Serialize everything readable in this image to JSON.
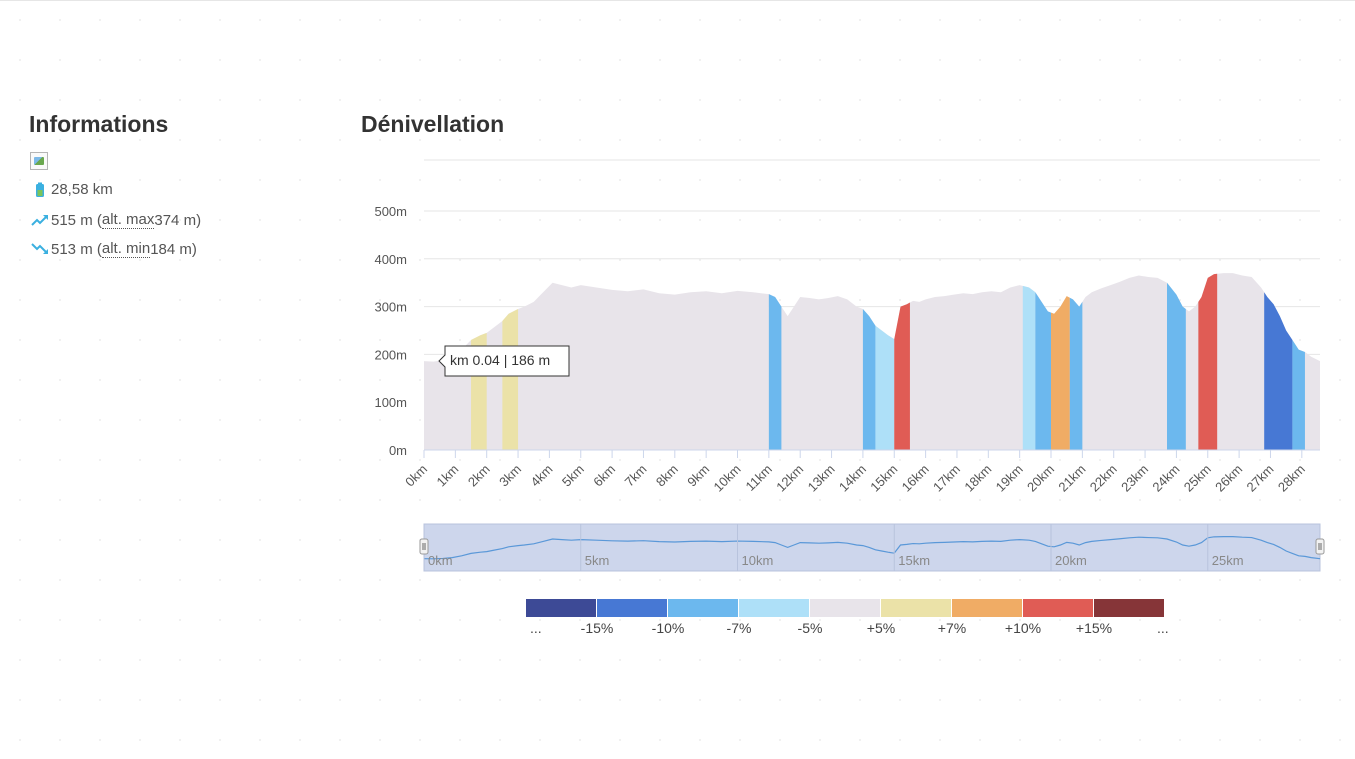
{
  "info": {
    "title": "Informations",
    "distance": "28,58 km",
    "ascent_value": "515 m (",
    "ascent_abbr": "alt. max",
    "ascent_alt": " 374 m)",
    "descent_value": "513 m (",
    "descent_abbr": "alt. min",
    "descent_alt": " 184 m)"
  },
  "tooltip": {
    "text": "km 0.04 | 186 m"
  },
  "chart_data": {
    "type": "area",
    "title": "Dénivellation",
    "xlim": [
      0,
      28.58
    ],
    "ylim": [
      0,
      600
    ],
    "y_ticks": [
      0,
      100,
      200,
      300,
      400,
      500
    ],
    "y_tick_labels": [
      "0m",
      "100m",
      "200m",
      "300m",
      "400m",
      "500m"
    ],
    "x_ticks": [
      0,
      1,
      2,
      3,
      4,
      5,
      6,
      7,
      8,
      9,
      10,
      11,
      12,
      13,
      14,
      15,
      16,
      17,
      18,
      19,
      20,
      21,
      22,
      23,
      24,
      25,
      26,
      27,
      28
    ],
    "x_tick_labels": [
      "0km",
      "1km",
      "2km",
      "3km",
      "4km",
      "5km",
      "6km",
      "7km",
      "8km",
      "9km",
      "10km",
      "11km",
      "12km",
      "13km",
      "14km",
      "15km",
      "16km",
      "17km",
      "18km",
      "19km",
      "20km",
      "21km",
      "22km",
      "23km",
      "24km",
      "25km",
      "26km",
      "27km",
      "28km"
    ],
    "elevation": {
      "x": [
        0,
        0.3,
        0.6,
        0.9,
        1.2,
        1.5,
        1.8,
        2.0,
        2.2,
        2.5,
        2.7,
        3.0,
        3.2,
        3.5,
        3.8,
        4.1,
        4.4,
        4.7,
        5.0,
        5.5,
        6.0,
        6.5,
        7.0,
        7.5,
        8.0,
        8.5,
        9.0,
        9.5,
        10.0,
        10.5,
        11.0,
        11.2,
        11.4,
        11.6,
        11.8,
        12.0,
        12.3,
        12.6,
        12.9,
        13.2,
        13.5,
        13.8,
        14.0,
        14.2,
        14.4,
        14.6,
        14.8,
        15.0,
        15.2,
        15.4,
        15.6,
        15.8,
        16.0,
        16.3,
        16.6,
        16.9,
        17.2,
        17.5,
        17.8,
        18.1,
        18.4,
        18.7,
        19.0,
        19.3,
        19.5,
        19.7,
        19.9,
        20.1,
        20.3,
        20.5,
        20.7,
        20.9,
        21.1,
        21.3,
        21.6,
        21.9,
        22.2,
        22.5,
        22.8,
        23.1,
        23.4,
        23.7,
        24.0,
        24.2,
        24.4,
        24.6,
        24.8,
        25.0,
        25.2,
        25.5,
        25.8,
        26.1,
        26.4,
        26.7,
        26.9,
        27.1,
        27.3,
        27.5,
        27.7,
        27.9,
        28.1,
        28.3,
        28.58
      ],
      "y": [
        186,
        185,
        188,
        195,
        210,
        230,
        240,
        245,
        255,
        270,
        285,
        295,
        300,
        310,
        330,
        350,
        345,
        340,
        345,
        340,
        335,
        332,
        336,
        328,
        325,
        330,
        332,
        328,
        333,
        330,
        326,
        320,
        300,
        280,
        300,
        320,
        318,
        315,
        318,
        322,
        315,
        300,
        295,
        280,
        260,
        250,
        240,
        232,
        300,
        305,
        312,
        310,
        315,
        320,
        322,
        325,
        328,
        326,
        330,
        332,
        330,
        340,
        345,
        340,
        330,
        310,
        290,
        285,
        300,
        322,
        315,
        300,
        320,
        330,
        338,
        345,
        352,
        360,
        365,
        362,
        360,
        350,
        325,
        300,
        290,
        300,
        320,
        360,
        368,
        370,
        370,
        365,
        362,
        340,
        320,
        305,
        280,
        250,
        230,
        210,
        205,
        195,
        186
      ]
    },
    "slope_categories": [
      "...",
      "-15%",
      "-10%",
      "-7%",
      "-5%",
      "+5%",
      "+7%",
      "+10%",
      "+15%",
      "..."
    ],
    "slope_colors": [
      "#3d4a96",
      "#4778d4",
      "#6cb8ee",
      "#aee0f8",
      "#e8e4ea",
      "#ebe2a8",
      "#f0ac65",
      "#e05c55",
      "#863538"
    ],
    "colored_segments": [
      {
        "from": 1.5,
        "to": 2.0,
        "color": "#ebe2a8"
      },
      {
        "from": 2.5,
        "to": 3.0,
        "color": "#ebe2a8"
      },
      {
        "from": 11.0,
        "to": 11.4,
        "color": "#6cb8ee"
      },
      {
        "from": 14.0,
        "to": 14.4,
        "color": "#6cb8ee"
      },
      {
        "from": 14.4,
        "to": 15.0,
        "color": "#aee0f8"
      },
      {
        "from": 15.0,
        "to": 15.5,
        "color": "#e05c55"
      },
      {
        "from": 19.1,
        "to": 19.5,
        "color": "#aee0f8"
      },
      {
        "from": 19.5,
        "to": 20.0,
        "color": "#6cb8ee"
      },
      {
        "from": 20.0,
        "to": 20.6,
        "color": "#f0ac65"
      },
      {
        "from": 20.6,
        "to": 21.0,
        "color": "#6cb8ee"
      },
      {
        "from": 23.7,
        "to": 24.3,
        "color": "#6cb8ee"
      },
      {
        "from": 24.7,
        "to": 25.3,
        "color": "#e05c55"
      },
      {
        "from": 26.8,
        "to": 27.7,
        "color": "#4778d4"
      },
      {
        "from": 27.7,
        "to": 28.1,
        "color": "#6cb8ee"
      }
    ],
    "navigator": {
      "tick_labels": [
        "0km",
        "5km",
        "10km",
        "15km",
        "20km",
        "25km"
      ],
      "ticks": [
        0,
        5,
        10,
        15,
        20,
        25
      ]
    }
  }
}
